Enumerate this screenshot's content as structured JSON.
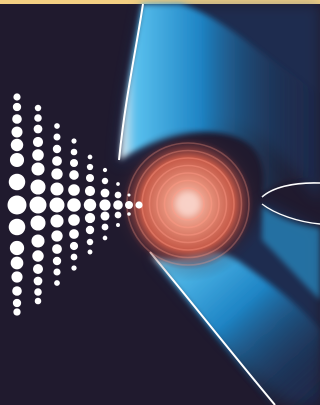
{
  "artwork": {
    "colors": {
      "background": "#201a2e",
      "top_border": "#f3cf82",
      "dots": "#ffffff",
      "wave_highlight": "#ffffff",
      "wave_cyan": "#2aa9e6",
      "wave_blue": "#1a5b9c",
      "sphere_core": "#f2b9ad",
      "sphere_mid": "#d9735c",
      "sphere_glow": "#8a3b3a",
      "sphere_rings": "#ff9a86"
    },
    "icons": {
      "dot_cone": "emitter-dots",
      "sphere": "glowing-sphere",
      "wave_fronts": "light-wave-arcs"
    },
    "dot_columns": 13,
    "sphere_ring_count": 7
  }
}
